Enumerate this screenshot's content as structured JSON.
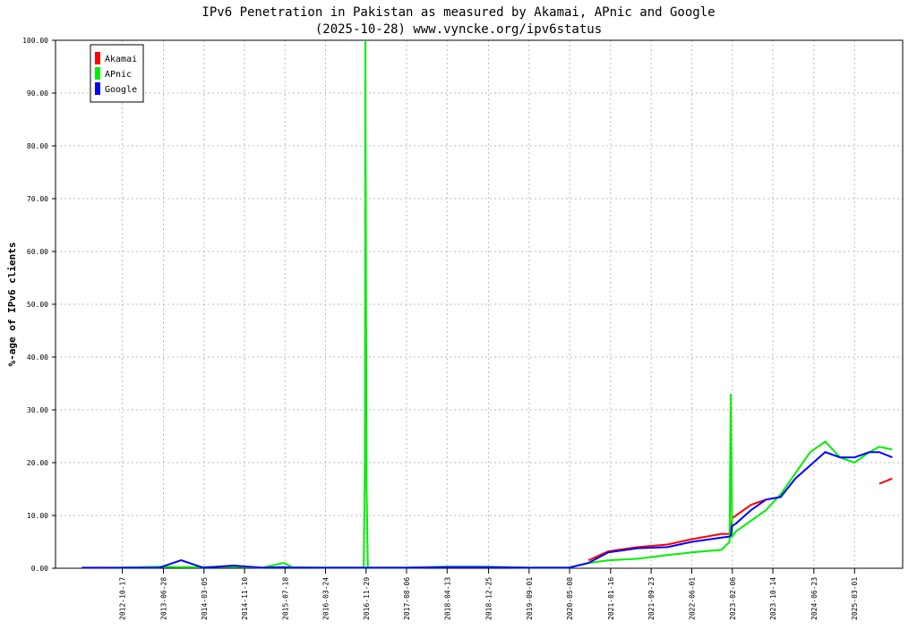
{
  "chart_data": {
    "type": "line",
    "title": "IPv6 Penetration in Pakistan as measured by Akamai, APnic and Google",
    "subtitle": "(2025-10-28) www.vyncke.org/ipv6status",
    "y_label": "%-age of IPv6 clients",
    "x": [
      "2012-02-10",
      "2012-10-01",
      "2013-06-01",
      "2013-10-15",
      "2014-03-01",
      "2014-09-01",
      "2015-03-01",
      "2015-07-10",
      "2015-09-01",
      "2016-03-01",
      "2016-11-15",
      "2016-11-22",
      "2016-11-25",
      "2016-12-02",
      "2016-12-10",
      "2017-08-01",
      "2018-04-01",
      "2018-12-01",
      "2019-09-01",
      "2020-05-01",
      "2020-09-01",
      "2021-01-01",
      "2021-07-01",
      "2022-01-01",
      "2022-06-01",
      "2022-12-01",
      "2023-01-20",
      "2023-01-27",
      "2023-02-05",
      "2023-03-01",
      "2023-06-01",
      "2023-09-01",
      "2023-12-01",
      "2024-03-01",
      "2024-06-01",
      "2024-09-01",
      "2024-12-01",
      "2025-03-01",
      "2025-06-01",
      "2025-08-01",
      "2025-10-20"
    ],
    "series": [
      {
        "name": "Akamai",
        "color": "#ff0000",
        "values": [
          null,
          null,
          null,
          null,
          null,
          null,
          null,
          null,
          null,
          null,
          null,
          null,
          null,
          null,
          null,
          null,
          null,
          null,
          null,
          null,
          1.5,
          3.2,
          4,
          4.5,
          5.5,
          6.5,
          6.5,
          7,
          9.5,
          10,
          12,
          13,
          null,
          null,
          null,
          null,
          null,
          null,
          null,
          16,
          17
        ]
      },
      {
        "name": "APnic",
        "color": "#00ee00",
        "values": [
          null,
          0.1,
          0.3,
          0.2,
          0.2,
          0.3,
          0.1,
          1.0,
          0.2,
          0.1,
          0.1,
          21,
          100,
          16,
          0.1,
          0.1,
          0.3,
          0.3,
          0.1,
          0.1,
          1.0,
          1.5,
          1.8,
          2.5,
          3,
          3.5,
          5,
          33,
          6,
          7,
          9,
          11,
          14,
          18,
          22,
          24,
          21,
          20,
          22,
          23,
          22.5
        ]
      },
      {
        "name": "Google",
        "color": "#0000ff",
        "values": [
          0.1,
          0.1,
          0.1,
          1.5,
          0.1,
          0.5,
          0.1,
          0.2,
          0.1,
          0.1,
          0.1,
          0.1,
          0.1,
          0.1,
          0.1,
          0.1,
          0.2,
          0.2,
          0.1,
          0.1,
          1.0,
          3.0,
          3.8,
          4.0,
          5.0,
          5.8,
          6.0,
          6.2,
          8.0,
          8.5,
          11,
          13,
          13.5,
          17,
          19.5,
          22,
          21,
          21,
          22,
          22,
          21
        ]
      }
    ],
    "xlim": [
      "2011-09-01",
      "2025-12-23"
    ],
    "xticks": [
      "2012-10-17",
      "2013-06-28",
      "2014-03-05",
      "2014-11-10",
      "2015-07-18",
      "2016-03-24",
      "2016-11-29",
      "2017-08-06",
      "2018-04-13",
      "2018-12-25",
      "2019-09-01",
      "2020-05-08",
      "2021-01-16",
      "2021-09-23",
      "2022-06-01",
      "2023-02-06",
      "2023-10-14",
      "2024-06-23",
      "2025-03-01"
    ],
    "ylim": [
      0,
      100
    ],
    "yticks": [
      {
        "value": 0,
        "label": "0.00"
      },
      {
        "value": 10,
        "label": "10.00"
      },
      {
        "value": 20,
        "label": "20.00"
      },
      {
        "value": 30,
        "label": "30.00"
      },
      {
        "value": 40,
        "label": "40.00"
      },
      {
        "value": 50,
        "label": "50.00"
      },
      {
        "value": 60,
        "label": "60.00"
      },
      {
        "value": 70,
        "label": "70.00"
      },
      {
        "value": 80,
        "label": "80.00"
      },
      {
        "value": 90,
        "label": "90.00"
      },
      {
        "value": 100,
        "label": "100.00"
      }
    ],
    "grid": true,
    "legend": "upper left"
  }
}
